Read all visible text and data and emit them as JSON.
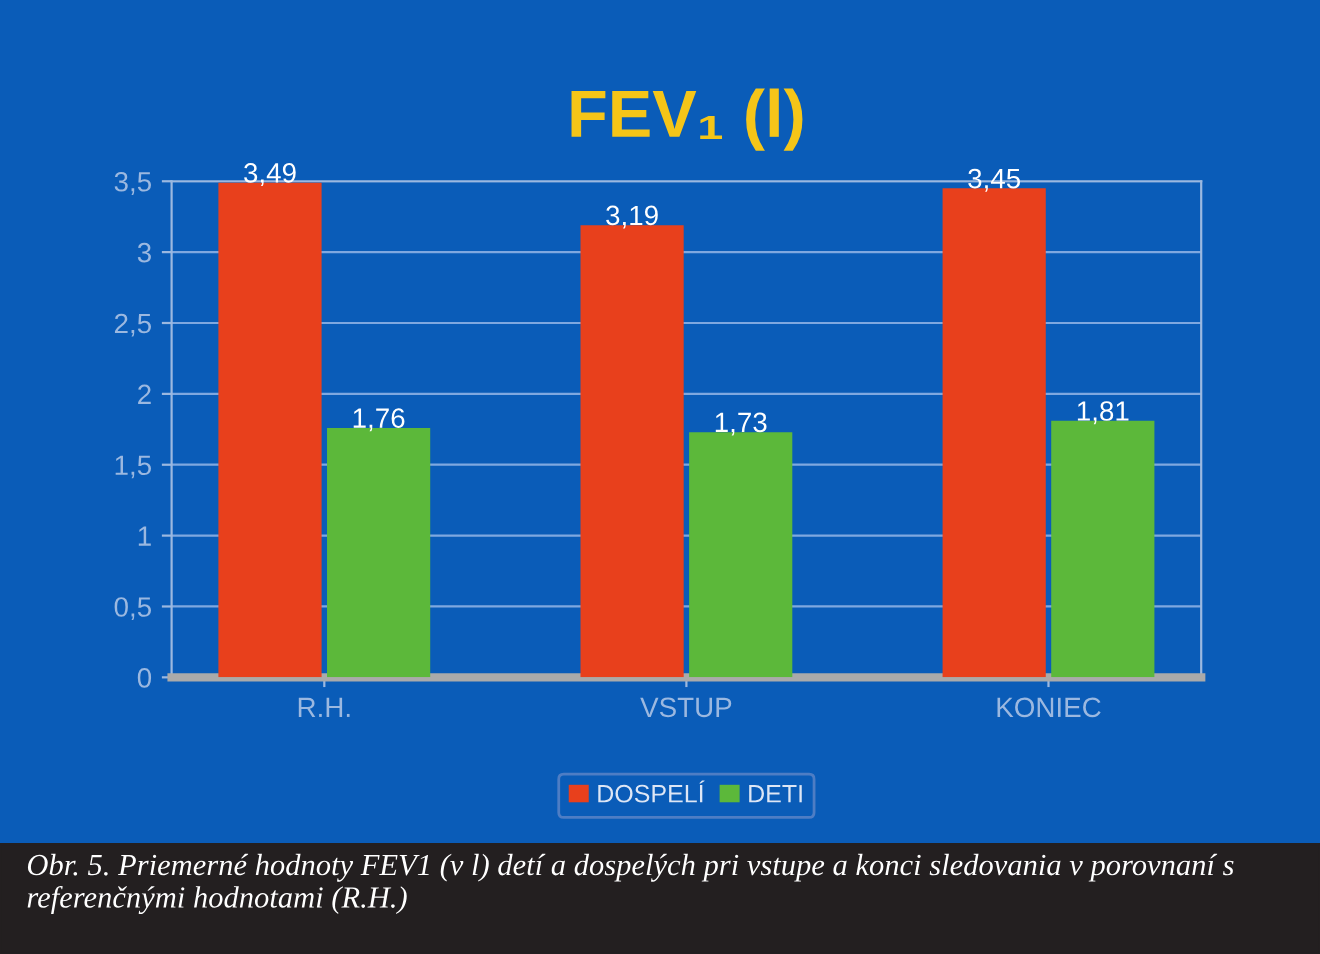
{
  "chart_data": {
    "type": "bar",
    "title": "FEV₁ (l)",
    "categories": [
      "R.H.",
      "VSTUP",
      "KONIEC"
    ],
    "series": [
      {
        "name": "DOSPELÍ",
        "color": "#e8401c",
        "values": [
          3.49,
          3.19,
          3.45
        ],
        "value_labels": [
          "3,49",
          "3,19",
          "3,45"
        ]
      },
      {
        "name": "DETI",
        "color": "#5cb83a",
        "values": [
          1.76,
          1.73,
          1.81
        ],
        "value_labels": [
          "1,76",
          "1,73",
          "1,81"
        ]
      }
    ],
    "ylim": [
      0,
      3.5
    ],
    "yticks": [
      0,
      {
        "value": 0.5,
        "label": "0,5"
      },
      1,
      {
        "value": 1.5,
        "label": "1,5"
      },
      2,
      {
        "value": 2.5,
        "label": "2,5"
      },
      3,
      {
        "value": 3.5,
        "label": "3,5"
      }
    ],
    "grid": "y",
    "legend": "bottom",
    "annotations": [
      "Obr. 5. Priemerné hodnoty FEV1 (v l) detí a dospelých pri vstupe a konci sledovania v porovnaní s referenčnými hodnotami (R.H.)"
    ]
  }
}
